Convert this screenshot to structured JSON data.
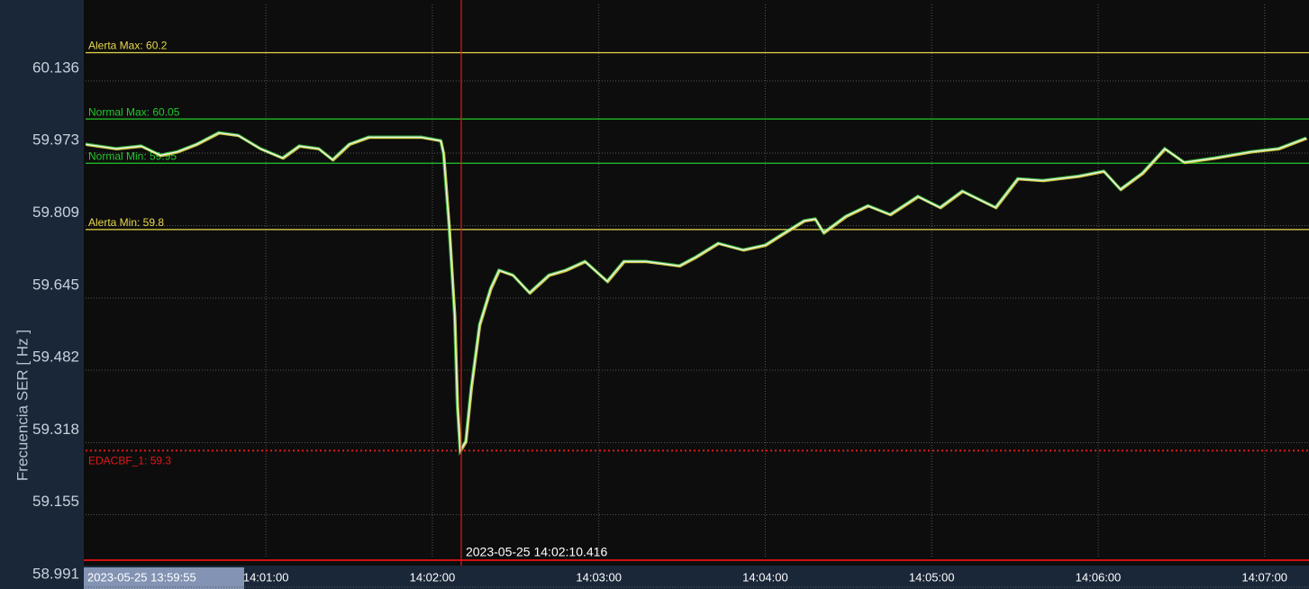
{
  "chart_data": {
    "type": "line",
    "ylabel": "Frecuencia SER [ Hz ]",
    "start_label": "2023-05-25 13:59:55",
    "xlim": [
      50395,
      50836
    ],
    "xticks": [
      {
        "value": 50460,
        "label": "14:01:00"
      },
      {
        "value": 50520,
        "label": "14:02:00"
      },
      {
        "value": 50580,
        "label": "14:03:00"
      },
      {
        "value": 50640,
        "label": "14:04:00"
      },
      {
        "value": 50700,
        "label": "14:05:00"
      },
      {
        "value": 50760,
        "label": "14:06:00"
      },
      {
        "value": 50820,
        "label": "14:07:00"
      }
    ],
    "ylim": [
      58.991,
      60.309
    ],
    "yticks": [
      58.991,
      59.155,
      59.318,
      59.482,
      59.645,
      59.809,
      59.973,
      60.136
    ],
    "grid": true,
    "thresholds": [
      {
        "label": "Alerta Max: 60.2",
        "value": 60.2,
        "color": "#e8d84a",
        "dotted": false
      },
      {
        "label": "Normal Max: 60.05",
        "value": 60.05,
        "color": "#22c82a",
        "dotted": false
      },
      {
        "label": "Normal Min: 59.95",
        "value": 59.95,
        "color": "#22c82a",
        "dotted": false
      },
      {
        "label": "Alerta Min: 59.8",
        "value": 59.8,
        "color": "#e8d84a",
        "dotted": false
      },
      {
        "label": "EDACBF_1: 59.3",
        "value": 59.3,
        "color": "#e01818",
        "dotted": true
      }
    ],
    "cursor": {
      "label": "2023-05-25 14:02:10.416",
      "value": 50530.416,
      "color": "#e01818"
    },
    "series": [
      {
        "color": "#f4f4f0",
        "x": [
          50395,
          50406,
          50415,
          50422,
          50428,
          50435,
          50443,
          50450,
          50458,
          50466,
          50472,
          50479,
          50484,
          50490,
          50497,
          50506,
          50516,
          50523,
          50524,
          50526,
          50528,
          50529,
          50530,
          50532,
          50534,
          50537,
          50541,
          50544,
          50549,
          50555,
          50562,
          50568,
          50575,
          50583,
          50589,
          50597,
          50609,
          50615,
          50623,
          50632,
          50640,
          50646,
          50654,
          50658,
          50661,
          50669,
          50677,
          50685,
          50695,
          50703,
          50711,
          50723,
          50731,
          50740,
          50753,
          50762,
          50768,
          50776,
          50784,
          50791,
          50802,
          50815,
          50825,
          50835
        ],
        "values": [
          59.993,
          59.983,
          59.989,
          59.968,
          59.976,
          59.993,
          60.019,
          60.013,
          59.983,
          59.962,
          59.989,
          59.983,
          59.958,
          59.993,
          60.009,
          60.009,
          60.009,
          60.001,
          59.972,
          59.809,
          59.606,
          59.402,
          59.3,
          59.321,
          59.443,
          59.585,
          59.667,
          59.708,
          59.697,
          59.657,
          59.697,
          59.708,
          59.728,
          59.683,
          59.728,
          59.728,
          59.718,
          59.738,
          59.769,
          59.754,
          59.765,
          59.789,
          59.82,
          59.824,
          59.793,
          59.83,
          59.854,
          59.834,
          59.875,
          59.85,
          59.887,
          59.85,
          59.915,
          59.911,
          59.921,
          59.932,
          59.891,
          59.928,
          59.983,
          59.952,
          59.962,
          59.976,
          59.983,
          60.007
        ]
      }
    ]
  }
}
